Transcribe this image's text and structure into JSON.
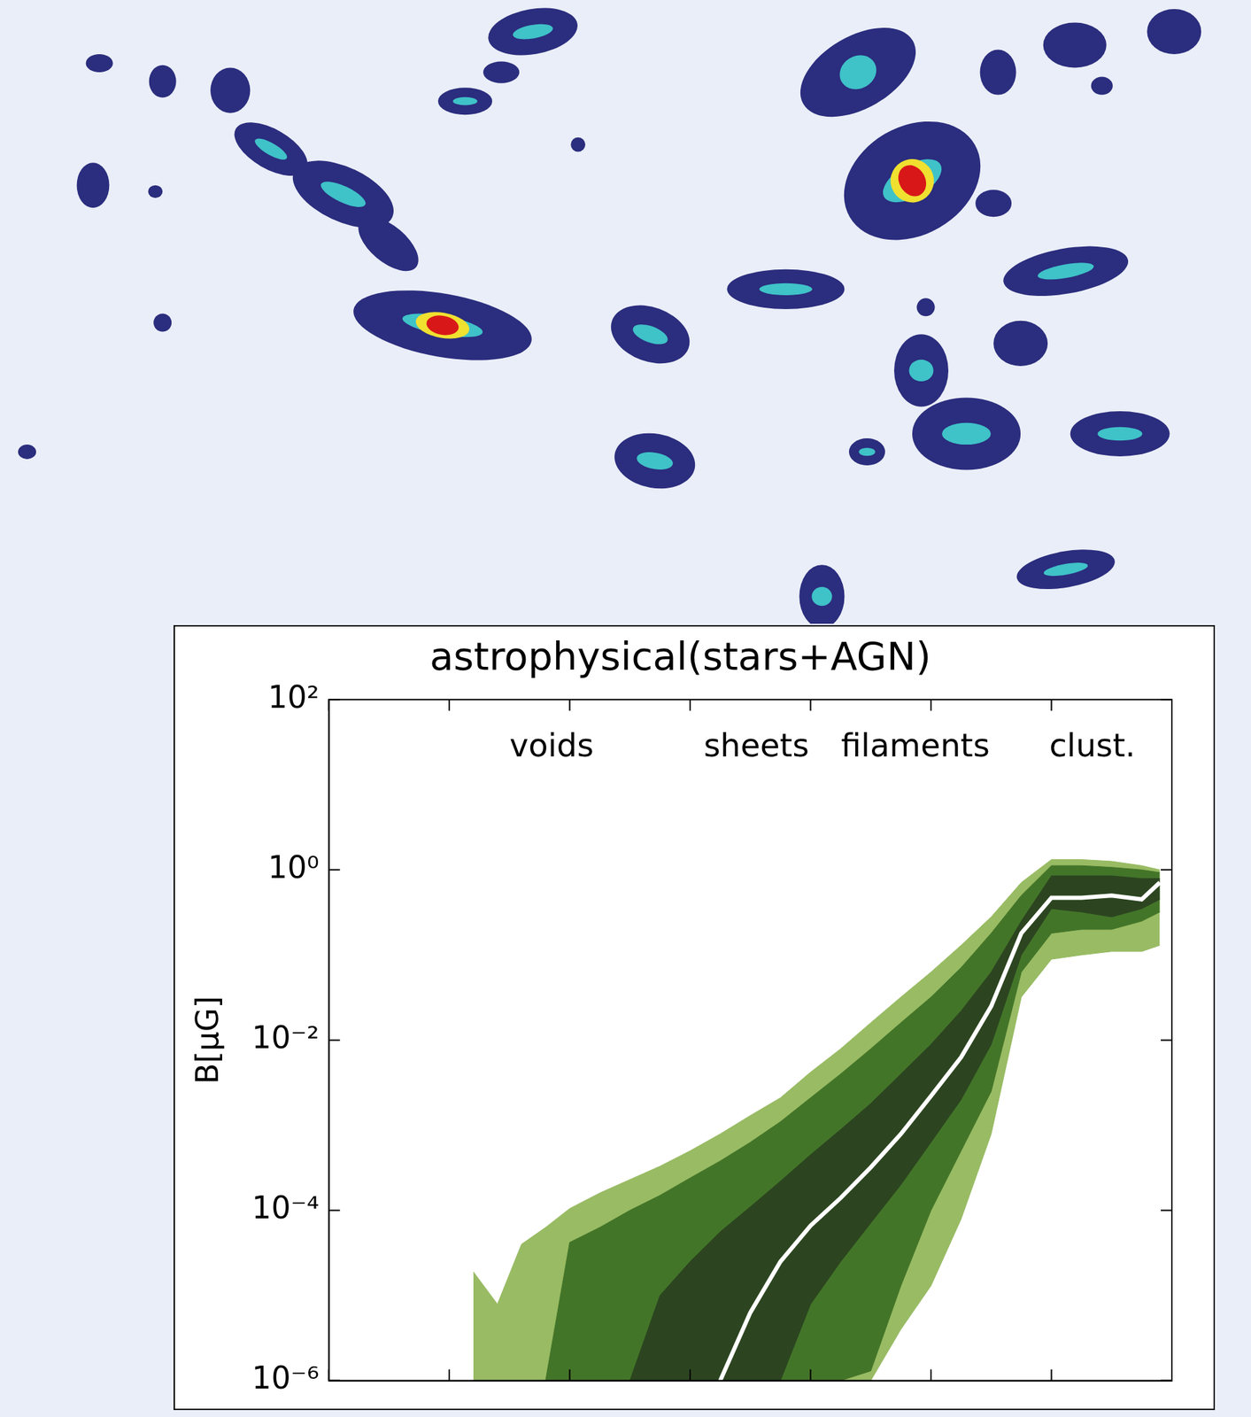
{
  "chart_data": {
    "type": "line",
    "title": "astrophysical(stars+AGN)",
    "y_label": "B[μG]",
    "x": [
      -0.8,
      -0.6,
      -0.4,
      -0.2,
      0,
      0.25,
      0.5,
      0.75,
      1,
      1.25,
      1.5,
      1.75,
      2,
      2.25,
      2.5,
      2.75,
      3,
      3.25,
      3.5,
      3.75,
      4,
      4.25,
      4.5,
      4.75,
      4.9
    ],
    "series": [
      {
        "color": "#ffffff",
        "values": [
          null,
          null,
          null,
          null,
          null,
          null,
          null,
          null,
          null,
          1e-06,
          6.3e-06,
          2.5e-05,
          6.6e-05,
          0.00014,
          0.00032,
          0.00079,
          0.0022,
          0.0063,
          0.025,
          0.18,
          0.47,
          0.47,
          0.5,
          0.45,
          0.71
        ]
      }
    ],
    "bands": [
      {
        "color": "#98bb63",
        "upper": [
          1.9e-05,
          7.9e-06,
          4e-05,
          6.3e-05,
          0.000105,
          0.00016,
          0.00023,
          0.00033,
          0.0005,
          0.00079,
          0.0013,
          0.0021,
          0.0042,
          0.0079,
          0.016,
          0.032,
          0.063,
          0.13,
          0.28,
          0.71,
          1.32,
          1.32,
          1.26,
          1.12,
          1
        ],
        "lower": [
          1e-06,
          1e-06,
          1e-06,
          1e-06,
          1e-06,
          1e-06,
          1e-06,
          1e-06,
          1e-06,
          1e-06,
          1e-06,
          1e-06,
          1e-06,
          1e-06,
          1e-06,
          4e-06,
          1.3e-05,
          7.9e-05,
          0.00079,
          0.032,
          0.089,
          0.1,
          0.11,
          0.11,
          0.13
        ]
      },
      {
        "color": "#437529",
        "upper": [
          null,
          null,
          null,
          1e-06,
          4.2e-05,
          6.3e-05,
          0.0001,
          0.00015,
          0.00024,
          0.00038,
          0.00063,
          0.0011,
          0.0021,
          0.004,
          0.0079,
          0.016,
          0.032,
          0.071,
          0.18,
          0.5,
          1.12,
          1.12,
          1.07,
          1,
          0.93
        ],
        "lower": [
          null,
          null,
          null,
          1e-06,
          1e-06,
          1e-06,
          1e-06,
          1e-06,
          1e-06,
          1e-06,
          1e-06,
          1e-06,
          1e-06,
          1e-06,
          1.3e-06,
          1.3e-05,
          0.0001,
          0.0005,
          0.0025,
          0.063,
          0.18,
          0.2,
          0.2,
          0.25,
          0.32
        ]
      },
      {
        "color": "#2c4520",
        "upper": [
          null,
          null,
          null,
          null,
          null,
          null,
          1e-06,
          1e-05,
          2.5e-05,
          5.6e-05,
          0.00011,
          0.00022,
          0.00045,
          0.00089,
          0.0018,
          0.004,
          0.0089,
          0.022,
          0.063,
          0.25,
          0.85,
          0.85,
          0.85,
          0.79,
          0.79
        ],
        "lower": [
          null,
          null,
          null,
          null,
          null,
          null,
          1e-06,
          1e-06,
          1e-06,
          1e-06,
          1e-06,
          1e-06,
          7.9e-06,
          2.5e-05,
          7.1e-05,
          0.0002,
          0.00063,
          0.002,
          0.0089,
          0.1,
          0.35,
          0.32,
          0.28,
          0.35,
          0.45
        ]
      }
    ],
    "annotations": [
      {
        "text": "voids",
        "x": -0.15
      },
      {
        "text": "sheets",
        "x": 1.55
      },
      {
        "text": "filaments",
        "x": 2.87
      },
      {
        "text": "clust.",
        "x": 4.34
      }
    ],
    "xlim": [
      -2,
      5
    ],
    "xticks": [
      -2,
      -1,
      0,
      1,
      2,
      3,
      4,
      5
    ],
    "ylim": [
      1e-06,
      100
    ],
    "yticks": [
      {
        "value": 1e-06,
        "label": "10⁻⁶"
      },
      {
        "value": 0.0001,
        "label": "10⁻⁴"
      },
      {
        "value": 0.01,
        "label": "10⁻²"
      },
      {
        "value": 1,
        "label": "10⁰"
      },
      {
        "value": 100,
        "label": "10²"
      }
    ],
    "log": "y",
    "grid": false,
    "tick_labels": "y"
  }
}
